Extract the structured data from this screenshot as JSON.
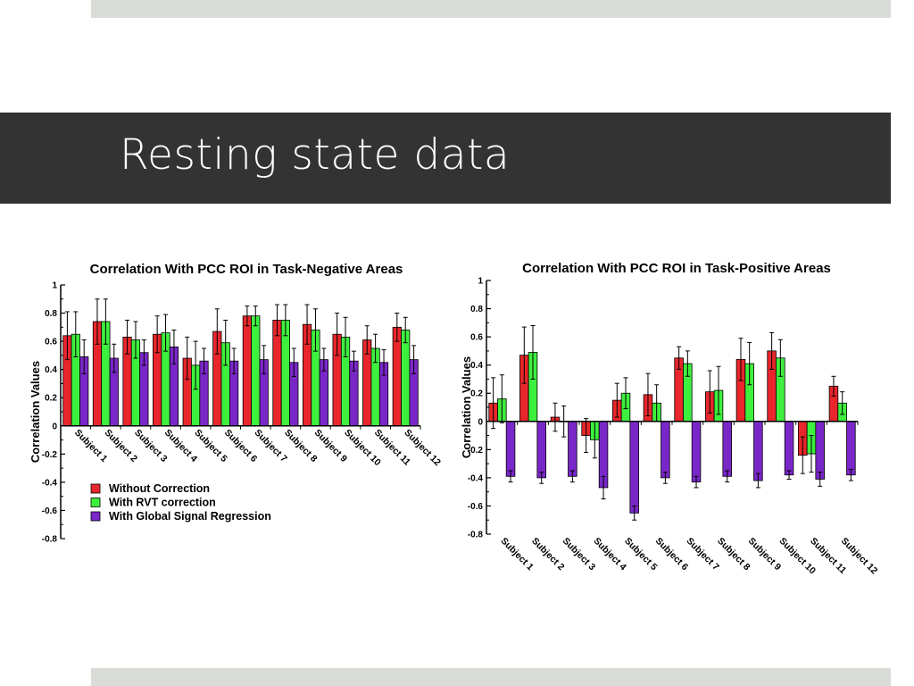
{
  "slide": {
    "title": "Resting state data"
  },
  "colors": {
    "top_bar": "#d9dbd6",
    "title_band": "#333333",
    "title_text": "#ffffff"
  },
  "chart_data": [
    {
      "type": "bar",
      "title": "Correlation With PCC ROI in Task-Negative Areas",
      "xlabel": "",
      "ylabel": "Correlation Values",
      "ylim": [
        -0.8,
        1
      ],
      "yticks": [
        -0.8,
        -0.6,
        -0.4,
        -0.2,
        0,
        0.2,
        0.4,
        0.6,
        0.8,
        1
      ],
      "ytick_labels": [
        "-0.8",
        "-0.6",
        "-0.4",
        "-0.2",
        "0",
        "0.2",
        "0.4",
        "0.6",
        "0.8",
        "1"
      ],
      "grid": false,
      "legend_position": "bottom-left",
      "categories": [
        "Subject 1",
        "Subject 2",
        "Subject 3",
        "Subject 4",
        "Subject 5",
        "Subject 6",
        "Subject 7",
        "Subject 8",
        "Subject 9",
        "Subject 10",
        "Subject 11",
        "Subject 12"
      ],
      "series": [
        {
          "name": "Without Correction",
          "color": "#e8262b",
          "values": [
            0.64,
            0.74,
            0.63,
            0.65,
            0.48,
            0.67,
            0.78,
            0.75,
            0.72,
            0.65,
            0.61,
            0.7
          ],
          "errors": [
            0.17,
            0.16,
            0.12,
            0.13,
            0.15,
            0.16,
            0.07,
            0.11,
            0.14,
            0.15,
            0.1,
            0.1
          ]
        },
        {
          "name": "With RVT correction",
          "color": "#3ef03e",
          "values": [
            0.65,
            0.74,
            0.61,
            0.66,
            0.43,
            0.59,
            0.78,
            0.75,
            0.68,
            0.63,
            0.55,
            0.68
          ],
          "errors": [
            0.16,
            0.16,
            0.13,
            0.13,
            0.17,
            0.16,
            0.07,
            0.11,
            0.15,
            0.14,
            0.1,
            0.09
          ]
        },
        {
          "name": "With Global Signal Regression",
          "color": "#7a27c9",
          "values": [
            0.49,
            0.48,
            0.52,
            0.56,
            0.46,
            0.46,
            0.47,
            0.45,
            0.47,
            0.46,
            0.45,
            0.47
          ],
          "errors": [
            0.12,
            0.1,
            0.09,
            0.12,
            0.09,
            0.09,
            0.1,
            0.1,
            0.08,
            0.07,
            0.09,
            0.1
          ]
        }
      ]
    },
    {
      "type": "bar",
      "title": "Correlation With PCC ROI in Task-Positive Areas",
      "xlabel": "",
      "ylabel": "Correlation Values",
      "ylim": [
        -0.8,
        1
      ],
      "yticks": [
        -0.8,
        -0.6,
        -0.4,
        -0.2,
        0,
        0.2,
        0.4,
        0.6,
        0.8,
        1
      ],
      "ytick_labels": [
        "-0.8",
        "-0.6",
        "-0.4",
        "-0.2",
        "0",
        "0.2",
        "0.4",
        "0.6",
        "0.8",
        "1"
      ],
      "grid": false,
      "legend_position": "none",
      "categories": [
        "Subject 1",
        "Subject 2",
        "Subject 3",
        "Subject 4",
        "Subject 5",
        "Subject 6",
        "Subject 7",
        "Subject 8",
        "Subject 9",
        "Subject 10",
        "Subject 11",
        "Subject 12"
      ],
      "series": [
        {
          "name": "Without Correction",
          "color": "#e8262b",
          "values": [
            0.13,
            0.47,
            0.03,
            -0.1,
            0.15,
            0.19,
            0.45,
            0.21,
            0.44,
            0.5,
            -0.24,
            0.25
          ],
          "errors": [
            0.18,
            0.2,
            0.1,
            0.12,
            0.12,
            0.15,
            0.08,
            0.15,
            0.15,
            0.13,
            0.13,
            0.07
          ]
        },
        {
          "name": "With RVT correction",
          "color": "#3ef03e",
          "values": [
            0.16,
            0.49,
            0.0,
            -0.13,
            0.2,
            0.13,
            0.41,
            0.22,
            0.41,
            0.45,
            -0.23,
            0.13
          ],
          "errors": [
            0.17,
            0.19,
            0.11,
            0.13,
            0.11,
            0.13,
            0.09,
            0.17,
            0.15,
            0.13,
            0.13,
            0.08
          ]
        },
        {
          "name": "With Global Signal Regression",
          "color": "#7a27c9",
          "values": [
            -0.39,
            -0.4,
            -0.39,
            -0.47,
            -0.65,
            -0.4,
            -0.43,
            -0.39,
            -0.42,
            -0.38,
            -0.41,
            -0.38
          ],
          "errors": [
            0.04,
            0.04,
            0.04,
            0.08,
            0.05,
            0.04,
            0.04,
            0.04,
            0.05,
            0.03,
            0.05,
            0.04
          ]
        }
      ]
    }
  ]
}
